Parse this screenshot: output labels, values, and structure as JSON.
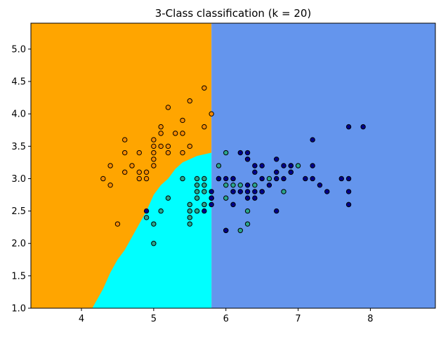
{
  "chart_data": {
    "type": "scatter",
    "title": "3-Class classification (k = 20)",
    "xlabel": "",
    "ylabel": "",
    "xlim": [
      3.3,
      8.9
    ],
    "ylim": [
      1.0,
      5.4
    ],
    "xticks": [
      4,
      5,
      6,
      7,
      8
    ],
    "yticks": [
      1.0,
      1.5,
      2.0,
      2.5,
      3.0,
      3.5,
      4.0,
      4.5,
      5.0
    ],
    "grid": false,
    "region_colors": {
      "class0": "#FFA500",
      "class1": "#00FFFF",
      "class2": "#6495ED"
    },
    "point_colors": {
      "class0": "#FF8C00",
      "class1": "#2AA58C",
      "class2": "#00008B"
    },
    "decision_regions": {
      "class2_boundary_x": 5.8,
      "class0_class1_boundary": [
        [
          4.15,
          1.0
        ],
        [
          4.3,
          1.3
        ],
        [
          4.4,
          1.55
        ],
        [
          4.5,
          1.75
        ],
        [
          4.6,
          1.9
        ],
        [
          4.7,
          2.1
        ],
        [
          4.8,
          2.3
        ],
        [
          4.9,
          2.5
        ],
        [
          5.0,
          2.75
        ],
        [
          5.1,
          2.9
        ],
        [
          5.2,
          3.0
        ],
        [
          5.3,
          3.15
        ],
        [
          5.4,
          3.25
        ],
        [
          5.6,
          3.35
        ],
        [
          5.8,
          3.4
        ]
      ]
    },
    "series": [
      {
        "class": "class0",
        "points": [
          [
            5.1,
            3.5
          ],
          [
            4.9,
            3.0
          ],
          [
            4.7,
            3.2
          ],
          [
            4.6,
            3.1
          ],
          [
            5.0,
            3.6
          ],
          [
            5.4,
            3.9
          ],
          [
            4.6,
            3.4
          ],
          [
            5.0,
            3.4
          ],
          [
            4.4,
            2.9
          ],
          [
            4.9,
            3.1
          ],
          [
            5.4,
            3.7
          ],
          [
            4.8,
            3.4
          ],
          [
            4.8,
            3.0
          ],
          [
            4.3,
            3.0
          ],
          [
            5.8,
            4.0
          ],
          [
            5.7,
            4.4
          ],
          [
            5.1,
            3.8
          ],
          [
            5.7,
            3.8
          ],
          [
            5.2,
            4.1
          ],
          [
            5.5,
            4.2
          ],
          [
            5.0,
            3.2
          ],
          [
            5.5,
            3.5
          ],
          [
            4.4,
            3.2
          ],
          [
            4.5,
            2.3
          ],
          [
            5.3,
            3.7
          ],
          [
            5.2,
            3.4
          ],
          [
            5.1,
            3.7
          ],
          [
            4.8,
            3.1
          ],
          [
            5.0,
            3.3
          ],
          [
            5.0,
            3.5
          ],
          [
            5.2,
            3.5
          ],
          [
            5.4,
            3.4
          ],
          [
            4.6,
            3.6
          ]
        ]
      },
      {
        "class": "class1",
        "points": [
          [
            5.5,
            2.3
          ],
          [
            5.7,
            2.8
          ],
          [
            4.9,
            2.4
          ],
          [
            5.2,
            2.7
          ],
          [
            5.0,
            2.0
          ],
          [
            5.9,
            3.0
          ],
          [
            5.6,
            2.9
          ],
          [
            5.6,
            3.0
          ],
          [
            5.8,
            2.7
          ],
          [
            6.2,
            2.2
          ],
          [
            5.6,
            2.5
          ],
          [
            5.9,
            3.2
          ],
          [
            6.1,
            2.8
          ],
          [
            6.4,
            2.9
          ],
          [
            6.6,
            3.0
          ],
          [
            6.8,
            2.8
          ],
          [
            6.0,
            2.9
          ],
          [
            5.7,
            2.6
          ],
          [
            5.5,
            2.4
          ],
          [
            5.8,
            2.7
          ],
          [
            6.0,
            2.7
          ],
          [
            5.4,
            3.0
          ],
          [
            6.3,
            2.3
          ],
          [
            5.5,
            2.5
          ],
          [
            5.5,
            2.6
          ],
          [
            6.1,
            3.0
          ],
          [
            5.0,
            2.3
          ],
          [
            5.6,
            2.7
          ],
          [
            5.7,
            2.9
          ],
          [
            5.1,
            2.5
          ],
          [
            5.7,
            3.0
          ],
          [
            6.2,
            2.9
          ],
          [
            6.5,
            2.8
          ],
          [
            7.0,
            3.2
          ],
          [
            6.3,
            2.5
          ],
          [
            6.1,
            2.9
          ],
          [
            6.0,
            3.4
          ],
          [
            6.3,
            3.3
          ],
          [
            5.6,
            2.8
          ],
          [
            6.0,
            2.2
          ]
        ]
      },
      {
        "class": "class2",
        "points": [
          [
            6.3,
            3.3
          ],
          [
            7.1,
            3.0
          ],
          [
            6.5,
            3.0
          ],
          [
            7.6,
            3.0
          ],
          [
            4.9,
            2.5
          ],
          [
            7.3,
            2.9
          ],
          [
            6.7,
            2.5
          ],
          [
            7.2,
            3.6
          ],
          [
            6.4,
            3.2
          ],
          [
            6.8,
            3.0
          ],
          [
            5.7,
            2.5
          ],
          [
            5.8,
            2.8
          ],
          [
            7.7,
            3.8
          ],
          [
            7.7,
            2.6
          ],
          [
            6.9,
            3.2
          ],
          [
            7.7,
            2.8
          ],
          [
            6.7,
            3.3
          ],
          [
            7.2,
            3.2
          ],
          [
            6.2,
            2.8
          ],
          [
            6.1,
            3.0
          ],
          [
            7.2,
            3.0
          ],
          [
            7.4,
            2.8
          ],
          [
            7.9,
            3.8
          ],
          [
            6.3,
            2.8
          ],
          [
            6.1,
            2.6
          ],
          [
            7.7,
            3.0
          ],
          [
            6.3,
            3.4
          ],
          [
            6.4,
            3.1
          ],
          [
            6.0,
            3.0
          ],
          [
            6.9,
            3.1
          ],
          [
            6.7,
            3.1
          ],
          [
            5.8,
            2.7
          ],
          [
            6.8,
            3.2
          ],
          [
            6.5,
            3.2
          ],
          [
            6.2,
            3.4
          ],
          [
            5.9,
            3.0
          ],
          [
            6.3,
            2.9
          ],
          [
            6.5,
            2.8
          ],
          [
            6.6,
            2.9
          ],
          [
            6.0,
            2.2
          ],
          [
            6.9,
            3.1
          ],
          [
            6.7,
            3.0
          ],
          [
            6.4,
            2.7
          ],
          [
            6.3,
            2.7
          ],
          [
            6.1,
            2.8
          ],
          [
            6.4,
            2.8
          ],
          [
            6.9,
            3.2
          ],
          [
            5.8,
            2.6
          ]
        ]
      }
    ]
  }
}
